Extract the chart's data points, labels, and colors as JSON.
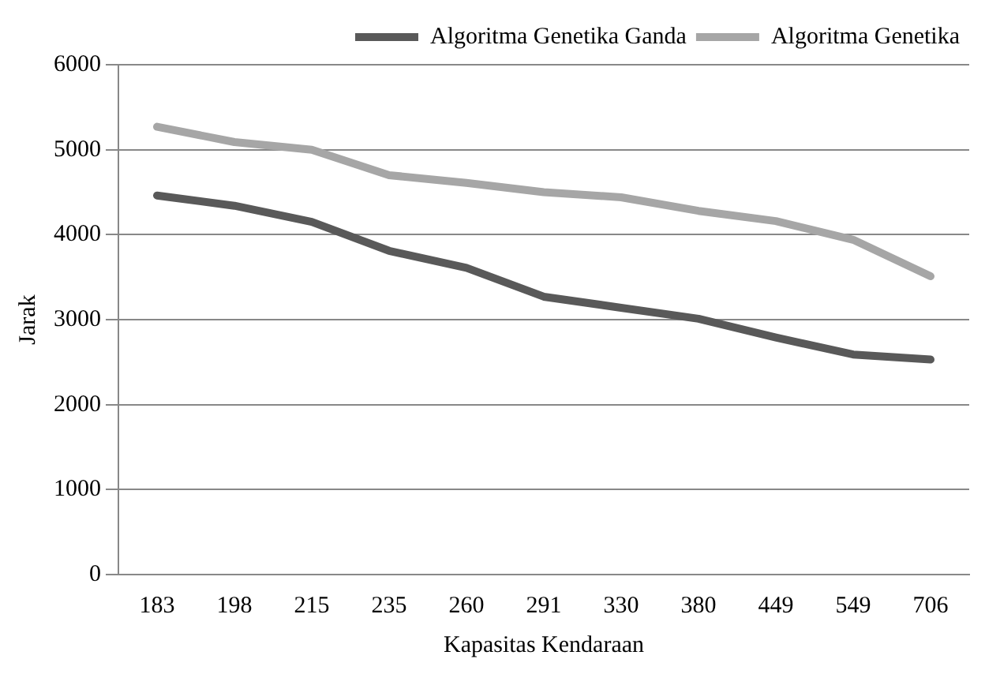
{
  "chart_data": {
    "type": "line",
    "xlabel": "Kapasitas Kendaraan",
    "ylabel": "Jarak",
    "categories": [
      "183",
      "198",
      "215",
      "235",
      "260",
      "291",
      "330",
      "380",
      "449",
      "549",
      "706"
    ],
    "series": [
      {
        "name": "Algoritma Genetika Ganda",
        "color": "#595959",
        "values": [
          4460,
          4340,
          4150,
          3810,
          3610,
          3270,
          3140,
          3010,
          2790,
          2590,
          2530
        ]
      },
      {
        "name": "Algoritma Genetika",
        "color": "#a6a6a6",
        "values": [
          5270,
          5090,
          5000,
          4700,
          4610,
          4500,
          4440,
          4280,
          4160,
          3940,
          3510
        ]
      }
    ],
    "ylim": [
      0,
      6000
    ],
    "yticks": [
      0,
      1000,
      2000,
      3000,
      4000,
      5000,
      6000
    ],
    "grid": "y",
    "legend": "top right",
    "marker": "none",
    "line_style": "solid"
  }
}
